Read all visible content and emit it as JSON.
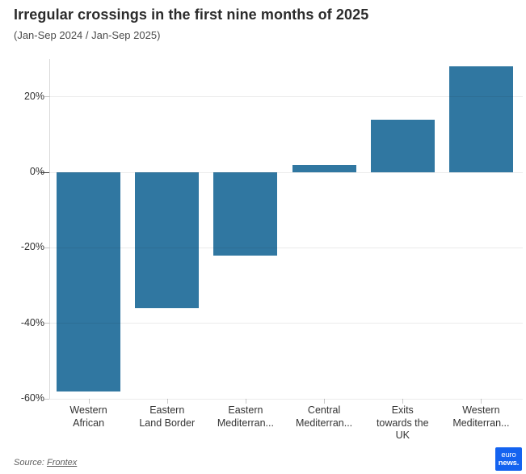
{
  "header": {
    "title": "Irregular crossings in the first nine months of 2025",
    "subtitle": "(Jan-Sep 2024 / Jan-Sep 2025)"
  },
  "chart_data": {
    "type": "bar",
    "title": "Irregular crossings in the first nine months of 2025",
    "subtitle": "(Jan-Sep 2024 / Jan-Sep 2025)",
    "categories": [
      "Western African",
      "Eastern Land Border",
      "Eastern Mediterran...",
      "Central Mediterran...",
      "Exits towards the UK",
      "Western Mediterran..."
    ],
    "category_lines": [
      [
        "Western",
        "African"
      ],
      [
        "Eastern",
        "Land Border"
      ],
      [
        "Eastern",
        "Mediterran..."
      ],
      [
        "Central",
        "Mediterran..."
      ],
      [
        "Exits",
        "towards the",
        "UK"
      ],
      [
        "Western",
        "Mediterran..."
      ]
    ],
    "values": [
      -58,
      -36,
      -22,
      2,
      14,
      28
    ],
    "unit": "%",
    "ylim": [
      -60,
      30
    ],
    "yticks": [
      20,
      0,
      -20,
      -40,
      -60
    ],
    "ytick_labels": [
      "20%",
      "0%",
      "-20%",
      "-40%",
      "-60%"
    ],
    "bar_color": "#3077a1",
    "grid": true,
    "legend": "none",
    "xlabel": "",
    "ylabel": ""
  },
  "footer": {
    "source_label": "Source:",
    "source_link": "Frontex",
    "logo": {
      "line1": "euro",
      "line2": "news.",
      "color": "#1463f0"
    }
  }
}
